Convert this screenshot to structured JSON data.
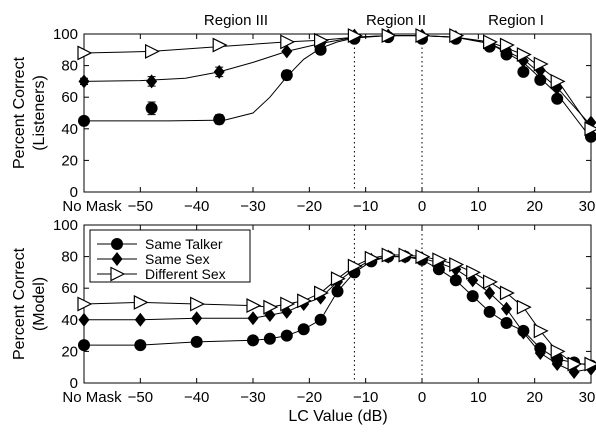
{
  "figure": {
    "xlabel": "LC Value (dB)",
    "region_labels": [
      "Region III",
      "Region II",
      "Region I"
    ],
    "vlines_x": [
      -12,
      0
    ],
    "x_ticks": [
      {
        "value": -60,
        "label": "No Mask"
      },
      {
        "value": -50,
        "label": "−50"
      },
      {
        "value": -40,
        "label": "−40"
      },
      {
        "value": -30,
        "label": "−30"
      },
      {
        "value": -20,
        "label": "−20"
      },
      {
        "value": -10,
        "label": "−10"
      },
      {
        "value": 0,
        "label": "0"
      },
      {
        "value": 10,
        "label": "10"
      },
      {
        "value": 20,
        "label": "20"
      },
      {
        "value": 30,
        "label": "30"
      }
    ],
    "y_ticks": [
      0,
      20,
      40,
      60,
      80,
      100
    ],
    "legend": [
      "Same Talker",
      "Same Sex",
      "Different Sex"
    ],
    "legend_placement": "top-left (bottom panel)"
  },
  "chart_data": [
    {
      "type": "line",
      "panel": "top",
      "ylabel": "Percent Correct (Listeners)",
      "ylabel_lines": [
        "Percent Correct",
        "(Listeners)"
      ],
      "xlim": [
        -60,
        30
      ],
      "ylim": [
        0,
        100
      ],
      "grid": false,
      "series": [
        {
          "name": "Same Talker",
          "marker": "circle",
          "x": [
            -60,
            -48,
            -36,
            -24,
            -18,
            -12,
            -6,
            0,
            6,
            12,
            15,
            18,
            21,
            24,
            30
          ],
          "y": [
            45,
            53,
            46,
            74,
            90,
            97,
            98,
            97,
            97,
            92,
            87,
            76,
            71,
            59,
            35
          ],
          "err": [
            2,
            4,
            3,
            3,
            0,
            0,
            0,
            0,
            0,
            0,
            0,
            0,
            0,
            0,
            0
          ],
          "fit": [
            [
              -60,
              45
            ],
            [
              -45,
              45
            ],
            [
              -35,
              45.5
            ],
            [
              -30,
              50
            ],
            [
              -27,
              60
            ],
            [
              -24,
              73
            ],
            [
              -21,
              84
            ],
            [
              -18,
              91
            ],
            [
              -15,
              95
            ],
            [
              -12,
              97.5
            ],
            [
              -6,
              99
            ],
            [
              0,
              99
            ],
            [
              6,
              98
            ],
            [
              12,
              94
            ],
            [
              18,
              82
            ],
            [
              24,
              62
            ],
            [
              30,
              34
            ]
          ]
        },
        {
          "name": "Same Sex",
          "marker": "diamond",
          "x": [
            -60,
            -48,
            -36,
            -24,
            -18,
            -12,
            -6,
            0,
            6,
            12,
            15,
            18,
            21,
            24,
            30
          ],
          "y": [
            70,
            70,
            76,
            89,
            94,
            99,
            99,
            99,
            98,
            93,
            90,
            83,
            77,
            66,
            44
          ],
          "err": [
            2,
            3,
            3,
            0,
            0,
            0,
            0,
            0,
            0,
            0,
            0,
            0,
            0,
            0,
            0
          ],
          "fit": [
            [
              -60,
              70
            ],
            [
              -50,
              70.5
            ],
            [
              -42,
              72
            ],
            [
              -36,
              76
            ],
            [
              -30,
              82
            ],
            [
              -24,
              89
            ],
            [
              -18,
              94
            ],
            [
              -12,
              98
            ],
            [
              -6,
              99
            ],
            [
              0,
              99
            ],
            [
              6,
              98
            ],
            [
              12,
              94
            ],
            [
              18,
              84
            ],
            [
              24,
              66
            ],
            [
              30,
              42
            ]
          ]
        },
        {
          "name": "Different Sex",
          "marker": "triangle-right",
          "x": [
            -60,
            -48,
            -36,
            -24,
            -18,
            -12,
            -6,
            0,
            6,
            12,
            15,
            18,
            21,
            24,
            30
          ],
          "y": [
            88,
            89,
            93,
            95,
            96,
            99,
            99,
            99,
            99,
            95,
            93,
            87,
            81,
            70,
            40
          ],
          "err": [
            0,
            0,
            0,
            0,
            0,
            0,
            0,
            0,
            0,
            0,
            0,
            0,
            0,
            0,
            0
          ],
          "fit": [
            [
              -60,
              88
            ],
            [
              -48,
              89
            ],
            [
              -36,
              92
            ],
            [
              -24,
              95
            ],
            [
              -18,
              96
            ],
            [
              -12,
              98
            ],
            [
              -6,
              99
            ],
            [
              0,
              99
            ],
            [
              6,
              98
            ],
            [
              12,
              95
            ],
            [
              18,
              87
            ],
            [
              24,
              71
            ],
            [
              30,
              40
            ]
          ]
        }
      ]
    },
    {
      "type": "line",
      "panel": "bottom",
      "ylabel": "Percent Correct (Model)",
      "ylabel_lines": [
        "Percent Correct",
        "(Model)"
      ],
      "xlim": [
        -60,
        30
      ],
      "ylim": [
        0,
        100
      ],
      "grid": false,
      "series": [
        {
          "name": "Same Talker",
          "marker": "circle",
          "x": [
            -60,
            -50,
            -40,
            -30,
            -27,
            -24,
            -21,
            -18,
            -15,
            -12,
            -9,
            -6,
            -3,
            0,
            3,
            6,
            9,
            12,
            15,
            18,
            21,
            24,
            27,
            30
          ],
          "y": [
            24,
            24,
            26,
            27,
            28,
            30,
            34,
            40,
            58,
            70,
            77,
            80,
            80,
            78,
            72,
            65,
            55,
            45,
            38,
            33,
            22,
            15,
            13,
            11
          ],
          "err": [],
          "fit": null
        },
        {
          "name": "Same Sex",
          "marker": "diamond",
          "x": [
            -60,
            -50,
            -40,
            -30,
            -27,
            -24,
            -21,
            -18,
            -15,
            -12,
            -9,
            -6,
            -3,
            0,
            3,
            6,
            9,
            12,
            15,
            18,
            21,
            24,
            27,
            30
          ],
          "y": [
            40,
            40,
            41,
            41,
            43,
            45,
            50,
            54,
            64,
            72,
            78,
            80,
            80,
            79,
            76,
            72,
            65,
            57,
            47,
            32,
            19,
            12,
            7,
            9
          ],
          "err": [],
          "fit": null
        },
        {
          "name": "Different Sex",
          "marker": "triangle-right",
          "x": [
            -60,
            -50,
            -40,
            -30,
            -27,
            -24,
            -21,
            -18,
            -15,
            -12,
            -9,
            -6,
            -3,
            0,
            3,
            6,
            9,
            12,
            15,
            18,
            21,
            24,
            27,
            30
          ],
          "y": [
            50,
            51,
            50,
            49,
            48,
            50,
            52,
            57,
            66,
            74,
            79,
            81,
            81,
            80,
            78,
            75,
            70,
            64,
            57,
            48,
            33,
            20,
            12,
            12
          ],
          "err": [],
          "fit": null
        }
      ]
    }
  ]
}
